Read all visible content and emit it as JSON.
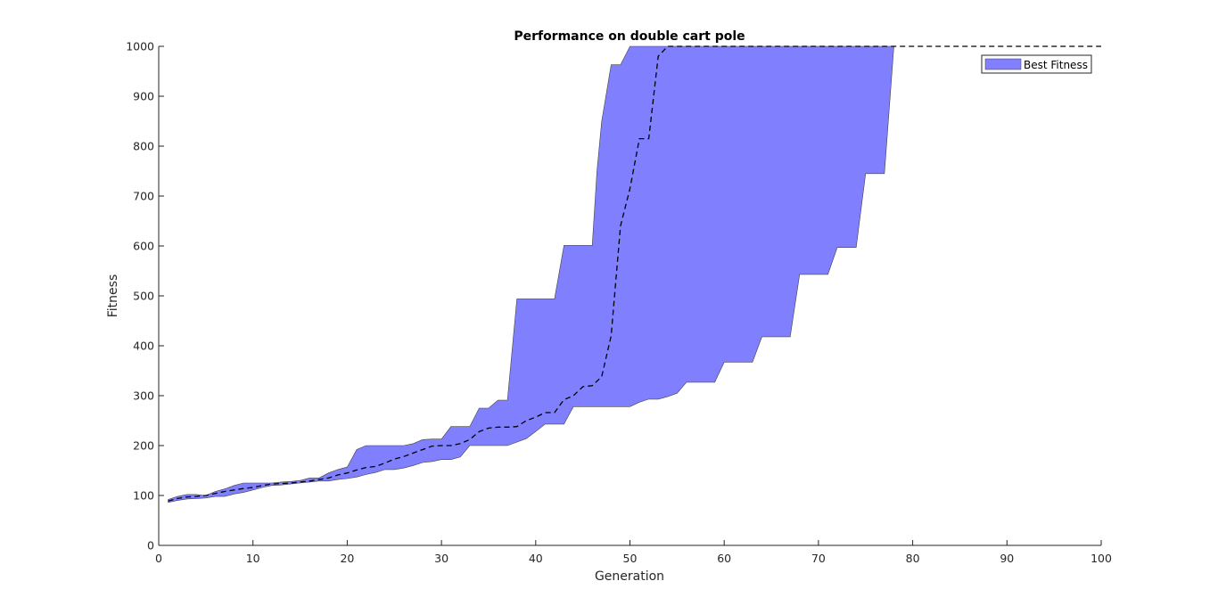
{
  "chart_data": {
    "type": "area",
    "title": "Performance on double cart pole",
    "xlabel": "Generation",
    "ylabel": "Fitness",
    "xlim": [
      0,
      100
    ],
    "ylim": [
      0,
      1000
    ],
    "xticks": [
      0,
      10,
      20,
      30,
      40,
      50,
      60,
      70,
      80,
      90,
      100
    ],
    "yticks": [
      0,
      100,
      200,
      300,
      400,
      500,
      600,
      700,
      800,
      900,
      1000
    ],
    "grid": false,
    "legend": {
      "placement": "top-right",
      "entries": [
        "Best Fitness"
      ]
    },
    "colors": {
      "band_fill": "#8080ff",
      "band_edge": "#404040",
      "mean_line": "#000000",
      "axis": "#262626"
    },
    "band": {
      "name": "Best Fitness",
      "upper": [
        [
          1,
          92
        ],
        [
          2,
          98
        ],
        [
          3,
          102
        ],
        [
          4,
          102
        ],
        [
          5,
          100
        ],
        [
          6,
          108
        ],
        [
          7,
          113
        ],
        [
          8,
          120
        ],
        [
          9,
          125
        ],
        [
          10,
          125
        ],
        [
          11,
          125
        ],
        [
          12,
          125
        ],
        [
          13,
          127
        ],
        [
          14,
          128
        ],
        [
          15,
          130
        ],
        [
          16,
          135
        ],
        [
          17,
          135
        ],
        [
          18,
          145
        ],
        [
          19,
          152
        ],
        [
          20,
          157
        ],
        [
          21,
          192
        ],
        [
          22,
          200
        ],
        [
          23,
          200
        ],
        [
          24,
          200
        ],
        [
          25,
          200
        ],
        [
          26,
          200
        ],
        [
          27,
          204
        ],
        [
          28,
          212
        ],
        [
          29,
          213
        ],
        [
          30,
          213
        ],
        [
          31,
          238
        ],
        [
          32,
          238
        ],
        [
          33,
          238
        ],
        [
          34,
          275
        ],
        [
          35,
          275
        ],
        [
          36,
          291
        ],
        [
          37,
          291
        ],
        [
          38,
          494
        ],
        [
          39,
          494
        ],
        [
          40,
          494
        ],
        [
          41,
          494
        ],
        [
          42,
          494
        ],
        [
          43,
          601
        ],
        [
          44,
          601
        ],
        [
          45,
          601
        ],
        [
          46,
          601
        ],
        [
          46.5,
          750
        ],
        [
          47,
          850
        ],
        [
          48,
          963
        ],
        [
          49,
          963
        ],
        [
          50,
          1000
        ],
        [
          78,
          1000
        ]
      ],
      "lower": [
        [
          1,
          86
        ],
        [
          2,
          90
        ],
        [
          3,
          93
        ],
        [
          4,
          94
        ],
        [
          5,
          95
        ],
        [
          6,
          98
        ],
        [
          7,
          98
        ],
        [
          8,
          103
        ],
        [
          9,
          106
        ],
        [
          10,
          111
        ],
        [
          11,
          116
        ],
        [
          12,
          120
        ],
        [
          13,
          121
        ],
        [
          14,
          123
        ],
        [
          15,
          125
        ],
        [
          16,
          127
        ],
        [
          17,
          129
        ],
        [
          18,
          129
        ],
        [
          19,
          132
        ],
        [
          20,
          134
        ],
        [
          21,
          137
        ],
        [
          22,
          142
        ],
        [
          23,
          146
        ],
        [
          24,
          152
        ],
        [
          25,
          152
        ],
        [
          26,
          155
        ],
        [
          27,
          160
        ],
        [
          28,
          166
        ],
        [
          29,
          168
        ],
        [
          30,
          172
        ],
        [
          31,
          172
        ],
        [
          32,
          177
        ],
        [
          33,
          200
        ],
        [
          34,
          200
        ],
        [
          35,
          200
        ],
        [
          36,
          200
        ],
        [
          37,
          200
        ],
        [
          38,
          207
        ],
        [
          39,
          214
        ],
        [
          40,
          228
        ],
        [
          41,
          243
        ],
        [
          42,
          243
        ],
        [
          43,
          243
        ],
        [
          44,
          278
        ],
        [
          45,
          278
        ],
        [
          46,
          278
        ],
        [
          47,
          278
        ],
        [
          48,
          278
        ],
        [
          49,
          278
        ],
        [
          50,
          278
        ],
        [
          51,
          287
        ],
        [
          52,
          293
        ],
        [
          53,
          293
        ],
        [
          54,
          298
        ],
        [
          55,
          305
        ],
        [
          56,
          327
        ],
        [
          57,
          327
        ],
        [
          58,
          327
        ],
        [
          59,
          327
        ],
        [
          60,
          367
        ],
        [
          61,
          367
        ],
        [
          62,
          367
        ],
        [
          63,
          367
        ],
        [
          64,
          418
        ],
        [
          65,
          418
        ],
        [
          66,
          418
        ],
        [
          67,
          418
        ],
        [
          68,
          543
        ],
        [
          69,
          543
        ],
        [
          70,
          543
        ],
        [
          71,
          543
        ],
        [
          72,
          597
        ],
        [
          73,
          597
        ],
        [
          74,
          597
        ],
        [
          75,
          745
        ],
        [
          76,
          745
        ],
        [
          77,
          745
        ],
        [
          78,
          1000
        ]
      ]
    },
    "series": [
      {
        "name": "",
        "style": "dashed",
        "points": [
          [
            1,
            89
          ],
          [
            2,
            94
          ],
          [
            3,
            97
          ],
          [
            4,
            98
          ],
          [
            5,
            100
          ],
          [
            6,
            104
          ],
          [
            7,
            108
          ],
          [
            8,
            111
          ],
          [
            9,
            114
          ],
          [
            10,
            116
          ],
          [
            11,
            120
          ],
          [
            12,
            123
          ],
          [
            13,
            124
          ],
          [
            14,
            125
          ],
          [
            15,
            127
          ],
          [
            16,
            129
          ],
          [
            17,
            132
          ],
          [
            18,
            135
          ],
          [
            19,
            141
          ],
          [
            20,
            145
          ],
          [
            21,
            151
          ],
          [
            22,
            156
          ],
          [
            23,
            158
          ],
          [
            24,
            165
          ],
          [
            25,
            173
          ],
          [
            26,
            178
          ],
          [
            27,
            185
          ],
          [
            28,
            192
          ],
          [
            29,
            199
          ],
          [
            30,
            200
          ],
          [
            31,
            200
          ],
          [
            32,
            204
          ],
          [
            33,
            212
          ],
          [
            34,
            228
          ],
          [
            35,
            235
          ],
          [
            36,
            237
          ],
          [
            37,
            237
          ],
          [
            38,
            238
          ],
          [
            39,
            250
          ],
          [
            40,
            257
          ],
          [
            41,
            266
          ],
          [
            42,
            266
          ],
          [
            43,
            292
          ],
          [
            44,
            300
          ],
          [
            45,
            318
          ],
          [
            46,
            320
          ],
          [
            47,
            338
          ],
          [
            48,
            420
          ],
          [
            49,
            640
          ],
          [
            50,
            715
          ],
          [
            51,
            815
          ],
          [
            52,
            815
          ],
          [
            53,
            980
          ],
          [
            54,
            1000
          ],
          [
            100,
            1000
          ]
        ]
      }
    ]
  }
}
